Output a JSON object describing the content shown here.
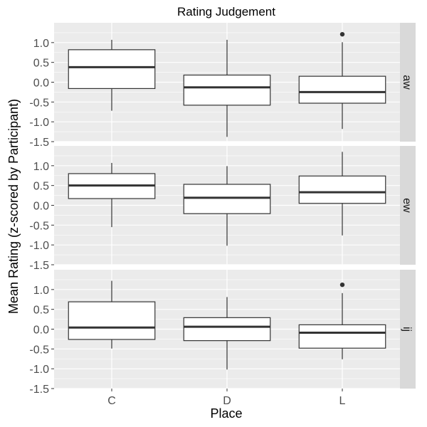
{
  "chart_data": {
    "type": "boxplot",
    "title": "Rating Judgement",
    "xlabel": "Place",
    "ylabel": "Mean Rating (z-scored by Participant)",
    "categories": [
      "C",
      "D",
      "L"
    ],
    "ylim": [
      -1.5,
      1.5
    ],
    "yticks": [
      1.0,
      0.5,
      0.0,
      -0.5,
      -1.0,
      -1.5
    ],
    "ytick_labels": [
      "1.0",
      "0.5",
      "0.0",
      "-0.5",
      "-1.0",
      "-1.5"
    ],
    "grid": true,
    "panel_background": "#ebebeb",
    "strip_background": "#d9d9d9",
    "panels": [
      {
        "label": "aw",
        "boxes": [
          {
            "category": "C",
            "whisker_low": -0.72,
            "q1": -0.16,
            "median": 0.38,
            "q3": 0.82,
            "whisker_high": 1.07,
            "outliers": []
          },
          {
            "category": "D",
            "whisker_low": -1.38,
            "q1": -0.58,
            "median": -0.13,
            "q3": 0.18,
            "whisker_high": 1.07,
            "outliers": []
          },
          {
            "category": "L",
            "whisker_low": -1.18,
            "q1": -0.53,
            "median": -0.25,
            "q3": 0.15,
            "whisker_high": 1.01,
            "outliers": [
              1.21
            ]
          }
        ]
      },
      {
        "label": "ew",
        "boxes": [
          {
            "category": "C",
            "whisker_low": -0.55,
            "q1": 0.17,
            "median": 0.5,
            "q3": 0.8,
            "whisker_high": 1.07,
            "outliers": []
          },
          {
            "category": "D",
            "whisker_low": -1.02,
            "q1": -0.21,
            "median": 0.19,
            "q3": 0.53,
            "whisker_high": 0.99,
            "outliers": []
          },
          {
            "category": "L",
            "whisker_low": -0.76,
            "q1": 0.05,
            "median": 0.33,
            "q3": 0.74,
            "whisker_high": 1.35,
            "outliers": []
          }
        ]
      },
      {
        "label": "ij",
        "boxes": [
          {
            "category": "C",
            "whisker_low": -0.49,
            "q1": -0.26,
            "median": 0.04,
            "q3": 0.69,
            "whisker_high": 1.22,
            "outliers": []
          },
          {
            "category": "D",
            "whisker_low": -1.02,
            "q1": -0.29,
            "median": 0.06,
            "q3": 0.29,
            "whisker_high": 0.81,
            "outliers": []
          },
          {
            "category": "L",
            "whisker_low": -0.76,
            "q1": -0.48,
            "median": -0.09,
            "q3": 0.11,
            "whisker_high": 0.91,
            "outliers": [
              1.12
            ]
          }
        ]
      }
    ]
  }
}
